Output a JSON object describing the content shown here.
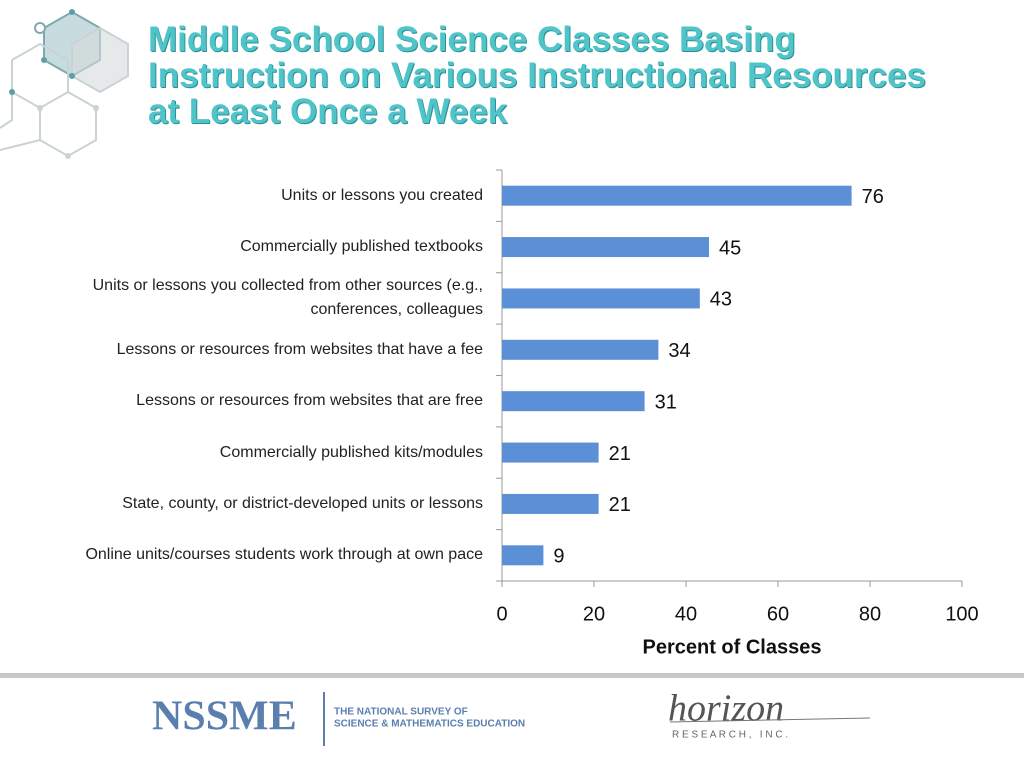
{
  "chart_data": {
    "type": "bar",
    "orientation": "horizontal",
    "title": "Middle School Science Classes Basing Instruction on Various Instructional Resources at Least Once a Week",
    "categories": [
      "Units or lessons you created",
      "Commercially published textbooks",
      "Units or lessons you collected from other sources (e.g., conferences, colleagues",
      "Lessons or resources from websites that have a fee",
      "Lessons or resources from websites that are free",
      "Commercially published kits/modules",
      "State, county, or district-developed units or lessons",
      "Online units/courses students work through at own pace"
    ],
    "values": [
      76,
      45,
      43,
      34,
      31,
      21,
      21,
      9
    ],
    "color": "#5b8fd6",
    "xlim": [
      0,
      100
    ],
    "xticks": [
      0,
      20,
      40,
      60,
      80,
      100
    ],
    "xlabel": "Percent of Classes",
    "grid": false
  },
  "footer": {
    "logo_left": "NSSME",
    "logo_left_caption": [
      "THE NATIONAL SURVEY OF",
      "SCIENCE & MATHEMATICS EDUCATION"
    ],
    "logo_right": "horizon",
    "logo_right_caption": "R E S E A R C H ,   I N C ."
  }
}
